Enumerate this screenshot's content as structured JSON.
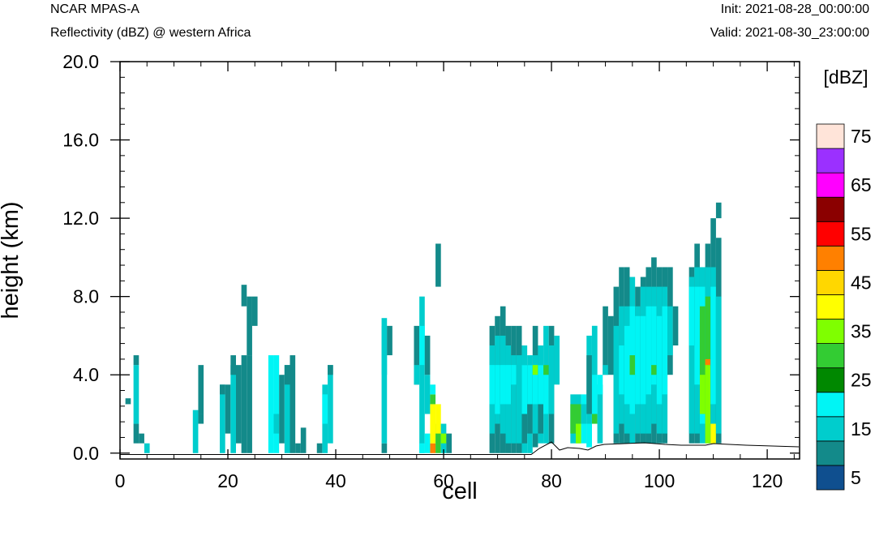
{
  "header": {
    "left_title": "NCAR MPAS-A",
    "left_subtitle": "Reflectivity (dBZ) @ western Africa",
    "right_init": "Init: 2021-08-28_00:00:00",
    "right_valid": "Valid: 2021-08-30_23:00:00"
  },
  "chart_data": {
    "type": "heatmap",
    "xlabel": "cell",
    "ylabel": "height (km)",
    "xlim": [
      0,
      126
    ],
    "ylim": [
      -0.3,
      20.0
    ],
    "xticks": [
      "0",
      "20",
      "40",
      "60",
      "80",
      "100",
      "120"
    ],
    "yticks": [
      "0.0",
      "4.0",
      "8.0",
      "12.0",
      "16.0",
      "20.0"
    ],
    "colorbar": {
      "unit": "[dBZ]",
      "labels": [
        "5",
        "15",
        "25",
        "35",
        "45",
        "55",
        "65",
        "75"
      ],
      "colors": [
        "#0f4f8f",
        "#138a8a",
        "#00cdcd",
        "#00f5f5",
        "#008800",
        "#33cc33",
        "#7fff00",
        "#ffff00",
        "#ffd700",
        "#ff8000",
        "#ff0000",
        "#8b0000",
        "#ff00ff",
        "#9b30ff",
        "#ffe4d9"
      ]
    },
    "columns": [
      {
        "x": 1.5,
        "dbz": [
          [
            2.5,
            2.8,
            5
          ]
        ]
      },
      {
        "x": 3,
        "dbz": [
          [
            0.5,
            1.5,
            5
          ],
          [
            1.5,
            4.5,
            10
          ],
          [
            4.5,
            5.0,
            5
          ]
        ]
      },
      {
        "x": 4,
        "dbz": [
          [
            0.5,
            1.0,
            5
          ]
        ]
      },
      {
        "x": 5,
        "dbz": [
          [
            0.0,
            0.5,
            10
          ]
        ]
      },
      {
        "x": 14,
        "dbz": [
          [
            0.0,
            2.2,
            10
          ]
        ]
      },
      {
        "x": 15,
        "dbz": [
          [
            1.5,
            2.0,
            5
          ],
          [
            2.0,
            4.5,
            5
          ]
        ]
      },
      {
        "x": 19,
        "dbz": [
          [
            0.0,
            3.5,
            10
          ],
          [
            3.0,
            3.5,
            5
          ]
        ]
      },
      {
        "x": 20,
        "dbz": [
          [
            1.0,
            3.5,
            5
          ]
        ]
      },
      {
        "x": 21,
        "dbz": [
          [
            0.0,
            4.5,
            10
          ],
          [
            4.0,
            5.0,
            5
          ]
        ]
      },
      {
        "x": 22,
        "dbz": [
          [
            0.5,
            4.5,
            5
          ]
        ]
      },
      {
        "x": 23,
        "dbz": [
          [
            0.0,
            5.0,
            5
          ],
          [
            7.5,
            8.6,
            5
          ]
        ]
      },
      {
        "x": 24,
        "dbz": [
          [
            0.0,
            5.0,
            5
          ],
          [
            5.0,
            8.0,
            5
          ]
        ]
      },
      {
        "x": 25,
        "dbz": [
          [
            6.5,
            8.0,
            5
          ]
        ]
      },
      {
        "x": 28,
        "dbz": [
          [
            0.0,
            5.0,
            15
          ]
        ]
      },
      {
        "x": 29,
        "dbz": [
          [
            0.0,
            5.0,
            15
          ],
          [
            1.0,
            2.0,
            10
          ]
        ]
      },
      {
        "x": 30,
        "dbz": [
          [
            0.5,
            4.0,
            5
          ]
        ]
      },
      {
        "x": 31,
        "dbz": [
          [
            0.0,
            4.5,
            10
          ],
          [
            3.5,
            4.5,
            5
          ]
        ]
      },
      {
        "x": 32,
        "dbz": [
          [
            0.0,
            5.0,
            5
          ]
        ]
      },
      {
        "x": 33,
        "dbz": [
          [
            0.0,
            0.5,
            5
          ]
        ]
      },
      {
        "x": 34,
        "dbz": [
          [
            0.0,
            1.3,
            5
          ]
        ]
      },
      {
        "x": 37,
        "dbz": [
          [
            0.0,
            0.5,
            5
          ]
        ]
      },
      {
        "x": 38,
        "dbz": [
          [
            0.0,
            3.5,
            10
          ],
          [
            1.5,
            3.0,
            15
          ]
        ]
      },
      {
        "x": 39,
        "dbz": [
          [
            0.5,
            4.5,
            10
          ],
          [
            4.0,
            4.5,
            5
          ]
        ]
      },
      {
        "x": 49,
        "dbz": [
          [
            0.0,
            0.5,
            5
          ],
          [
            0.5,
            6.5,
            10
          ],
          [
            4.0,
            6.9,
            10
          ]
        ]
      },
      {
        "x": 50,
        "dbz": [
          [
            5.0,
            6.5,
            5
          ]
        ]
      },
      {
        "x": 55,
        "dbz": [
          [
            3.5,
            6.5,
            5
          ],
          [
            3.5,
            4.5,
            10
          ]
        ]
      },
      {
        "x": 56,
        "dbz": [
          [
            0.0,
            8.0,
            10
          ],
          [
            4.5,
            6.5,
            15
          ],
          [
            0.0,
            0.5,
            15
          ]
        ]
      },
      {
        "x": 57,
        "dbz": [
          [
            0.0,
            1.0,
            15
          ],
          [
            2.0,
            4.0,
            10
          ],
          [
            4.0,
            6.0,
            5
          ]
        ]
      },
      {
        "x": 58,
        "dbz": [
          [
            0.0,
            0.5,
            45
          ],
          [
            0.5,
            2.5,
            35
          ],
          [
            2.5,
            3.0,
            25
          ],
          [
            3.0,
            3.5,
            15
          ]
        ]
      },
      {
        "x": 59,
        "dbz": [
          [
            0.0,
            1.5,
            25
          ],
          [
            1.0,
            2.5,
            35
          ],
          [
            8.5,
            10.7,
            5
          ]
        ]
      },
      {
        "x": 60,
        "dbz": [
          [
            0.0,
            1.5,
            10
          ],
          [
            0.5,
            1.0,
            30
          ]
        ]
      },
      {
        "x": 61,
        "dbz": [
          [
            0.0,
            1.0,
            5
          ]
        ]
      },
      {
        "x": 69,
        "dbz": [
          [
            0.0,
            6.5,
            5
          ],
          [
            1.0,
            5.5,
            10
          ],
          [
            2.5,
            4.5,
            15
          ]
        ]
      },
      {
        "x": 70,
        "dbz": [
          [
            0.0,
            7.0,
            5
          ],
          [
            1.5,
            6.0,
            10
          ],
          [
            2.0,
            4.5,
            15
          ]
        ]
      },
      {
        "x": 71,
        "dbz": [
          [
            0.0,
            7.5,
            5
          ],
          [
            1.0,
            6.0,
            10
          ],
          [
            2.5,
            4.5,
            15
          ]
        ]
      },
      {
        "x": 72,
        "dbz": [
          [
            0.0,
            6.5,
            5
          ],
          [
            0.5,
            5.5,
            10
          ],
          [
            2.5,
            4.5,
            15
          ]
        ]
      },
      {
        "x": 73,
        "dbz": [
          [
            0.0,
            6.5,
            5
          ],
          [
            0.5,
            5.0,
            10
          ],
          [
            3.5,
            4.5,
            15
          ]
        ]
      },
      {
        "x": 74,
        "dbz": [
          [
            0.0,
            6.5,
            5
          ],
          [
            0.5,
            5.0,
            10
          ]
        ]
      },
      {
        "x": 75,
        "dbz": [
          [
            0.0,
            5.5,
            10
          ],
          [
            0.5,
            4.5,
            5
          ],
          [
            2.0,
            4.5,
            15
          ]
        ]
      },
      {
        "x": 76,
        "dbz": [
          [
            0.0,
            5.0,
            10
          ],
          [
            1.0,
            4.5,
            5
          ],
          [
            2.5,
            4.5,
            15
          ]
        ]
      },
      {
        "x": 77,
        "dbz": [
          [
            0.3,
            6.5,
            5
          ],
          [
            1.0,
            5.0,
            10
          ],
          [
            2.5,
            4.5,
            15
          ],
          [
            4.0,
            4.5,
            30
          ]
        ]
      },
      {
        "x": 78,
        "dbz": [
          [
            0.5,
            5.5,
            10
          ],
          [
            1.0,
            4.5,
            5
          ],
          [
            2.5,
            4.5,
            15
          ]
        ]
      },
      {
        "x": 79,
        "dbz": [
          [
            0.5,
            6.5,
            10
          ],
          [
            2.0,
            4.5,
            15
          ],
          [
            4.0,
            4.5,
            25
          ]
        ]
      },
      {
        "x": 80,
        "dbz": [
          [
            0.5,
            6.5,
            5
          ],
          [
            2.0,
            5.5,
            10
          ]
        ]
      },
      {
        "x": 81,
        "dbz": [
          [
            3.5,
            6.0,
            10
          ]
        ]
      },
      {
        "x": 84,
        "dbz": [
          [
            0.5,
            3.0,
            10
          ],
          [
            1.0,
            2.5,
            25
          ]
        ]
      },
      {
        "x": 85,
        "dbz": [
          [
            0.5,
            3.0,
            10
          ],
          [
            1.5,
            2.5,
            25
          ],
          [
            0.5,
            1.5,
            30
          ]
        ]
      },
      {
        "x": 86,
        "dbz": [
          [
            0.5,
            3.0,
            15
          ],
          [
            1.5,
            2.5,
            10
          ]
        ]
      },
      {
        "x": 87,
        "dbz": [
          [
            0.3,
            6.0,
            10
          ],
          [
            0.3,
            1.5,
            15
          ],
          [
            2.0,
            5.0,
            5
          ]
        ]
      },
      {
        "x": 88,
        "dbz": [
          [
            1.5,
            6.5,
            15
          ],
          [
            1.5,
            2.0,
            25
          ],
          [
            4.0,
            6.5,
            10
          ]
        ]
      },
      {
        "x": 89,
        "dbz": [
          [
            0.5,
            3.5,
            10
          ],
          [
            3.0,
            4.0,
            15
          ]
        ]
      },
      {
        "x": 90,
        "dbz": [
          [
            4.0,
            7.5,
            5
          ],
          [
            4.0,
            4.5,
            10
          ]
        ]
      },
      {
        "x": 91,
        "dbz": [
          [
            4.0,
            7.0,
            5
          ]
        ]
      },
      {
        "x": 92,
        "dbz": [
          [
            0.5,
            8.5,
            5
          ],
          [
            1.0,
            6.5,
            10
          ]
        ]
      },
      {
        "x": 93,
        "dbz": [
          [
            0.5,
            9.5,
            5
          ],
          [
            1.5,
            7.5,
            10
          ],
          [
            3.0,
            5.5,
            15
          ]
        ]
      },
      {
        "x": 94,
        "dbz": [
          [
            0.5,
            9.5,
            5
          ],
          [
            1.0,
            7.5,
            10
          ],
          [
            2.5,
            6.5,
            15
          ]
        ]
      },
      {
        "x": 95,
        "dbz": [
          [
            0.5,
            9.0,
            10
          ],
          [
            2.0,
            7.5,
            15
          ],
          [
            4.0,
            5.0,
            25
          ]
        ]
      },
      {
        "x": 96,
        "dbz": [
          [
            0.5,
            8.5,
            5
          ],
          [
            1.0,
            7.5,
            10
          ],
          [
            2.5,
            7.0,
            15
          ]
        ]
      },
      {
        "x": 97,
        "dbz": [
          [
            0.5,
            9.0,
            5
          ],
          [
            1.0,
            8.5,
            10
          ],
          [
            2.5,
            7.0,
            15
          ]
        ]
      },
      {
        "x": 98,
        "dbz": [
          [
            0.5,
            9.5,
            5
          ],
          [
            1.0,
            8.5,
            10
          ],
          [
            3.0,
            7.5,
            15
          ]
        ]
      },
      {
        "x": 99,
        "dbz": [
          [
            0.5,
            10.0,
            5
          ],
          [
            1.5,
            8.5,
            10
          ],
          [
            3.5,
            7.5,
            15
          ],
          [
            4.0,
            4.5,
            25
          ]
        ]
      },
      {
        "x": 100,
        "dbz": [
          [
            0.5,
            9.5,
            5
          ],
          [
            1.0,
            8.5,
            10
          ],
          [
            2.5,
            7.0,
            15
          ]
        ]
      },
      {
        "x": 101,
        "dbz": [
          [
            0.5,
            9.5,
            5
          ],
          [
            1.0,
            8.5,
            10
          ],
          [
            3.0,
            7.5,
            15
          ]
        ]
      },
      {
        "x": 102,
        "dbz": [
          [
            4.0,
            9.5,
            5
          ],
          [
            5.0,
            7.5,
            10
          ]
        ]
      },
      {
        "x": 103,
        "dbz": [
          [
            5.5,
            7.5,
            5
          ]
        ]
      },
      {
        "x": 106,
        "dbz": [
          [
            0.5,
            9.5,
            5
          ],
          [
            1.0,
            9.0,
            10
          ],
          [
            5.5,
            8.5,
            15
          ]
        ]
      },
      {
        "x": 107,
        "dbz": [
          [
            0.5,
            10.7,
            5
          ],
          [
            1.0,
            9.5,
            10
          ],
          [
            3.5,
            8.5,
            15
          ]
        ]
      },
      {
        "x": 108,
        "dbz": [
          [
            0.5,
            9.5,
            10
          ],
          [
            1.5,
            8.5,
            15
          ],
          [
            2.0,
            7.0,
            30
          ],
          [
            4.0,
            7.5,
            25
          ]
        ]
      },
      {
        "x": 109,
        "dbz": [
          [
            0.5,
            10.7,
            5
          ],
          [
            1.0,
            9.5,
            10
          ],
          [
            2.0,
            8.0,
            25
          ],
          [
            0.5,
            4.5,
            30
          ],
          [
            4.5,
            4.8,
            45
          ]
        ]
      },
      {
        "x": 110,
        "dbz": [
          [
            0.5,
            12.0,
            5
          ],
          [
            1.0,
            9.5,
            10
          ],
          [
            2.5,
            8.5,
            15
          ],
          [
            0.5,
            1.5,
            35
          ]
        ]
      },
      {
        "x": 111,
        "dbz": [
          [
            12.0,
            12.8,
            5
          ],
          [
            0.5,
            11.0,
            5
          ],
          [
            1.0,
            8.0,
            10
          ]
        ]
      }
    ]
  }
}
